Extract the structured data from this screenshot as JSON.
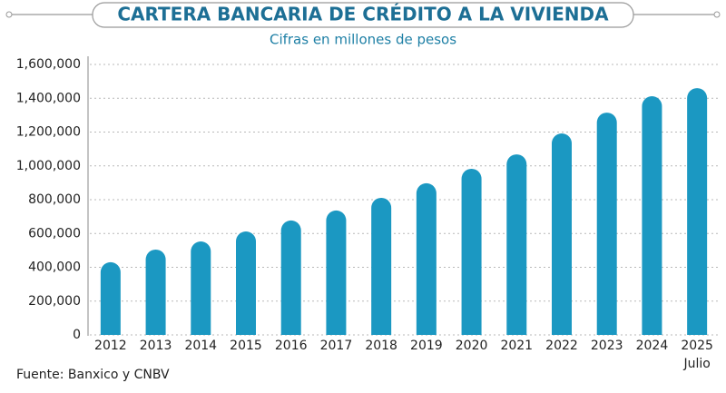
{
  "chart_data": {
    "type": "bar",
    "title": "CARTERA BANCARIA DE CRÉDITO A LA VIVIENDA",
    "subtitle": "Cifras en millones de pesos",
    "source": "Fuente: Banxico y CNBV",
    "categories": [
      "2012",
      "2013",
      "2014",
      "2015",
      "2016",
      "2017",
      "2018",
      "2019",
      "2020",
      "2021",
      "2022",
      "2023",
      "2024",
      "2025"
    ],
    "category_note": "Julio",
    "values": [
      430000,
      505000,
      553000,
      612000,
      677000,
      736000,
      811000,
      897000,
      983000,
      1068000,
      1192000,
      1315000,
      1412000,
      1460000
    ],
    "color": "#1b98c2",
    "ylim": [
      0,
      1600000
    ],
    "yticks": [
      0,
      {
        "value": 200000,
        "label": "200,000"
      },
      {
        "value": 400000,
        "label": "400,000"
      },
      {
        "value": 600000,
        "label": "600,000"
      },
      {
        "value": 800000,
        "label": "800,000"
      },
      {
        "value": 1000000,
        "label": "1,000,000"
      },
      {
        "value": 1200000,
        "label": "1,200,000"
      },
      {
        "value": 1400000,
        "label": "1,400,000"
      },
      {
        "value": 1600000,
        "label": "1,600,000"
      }
    ],
    "grid": true
  }
}
